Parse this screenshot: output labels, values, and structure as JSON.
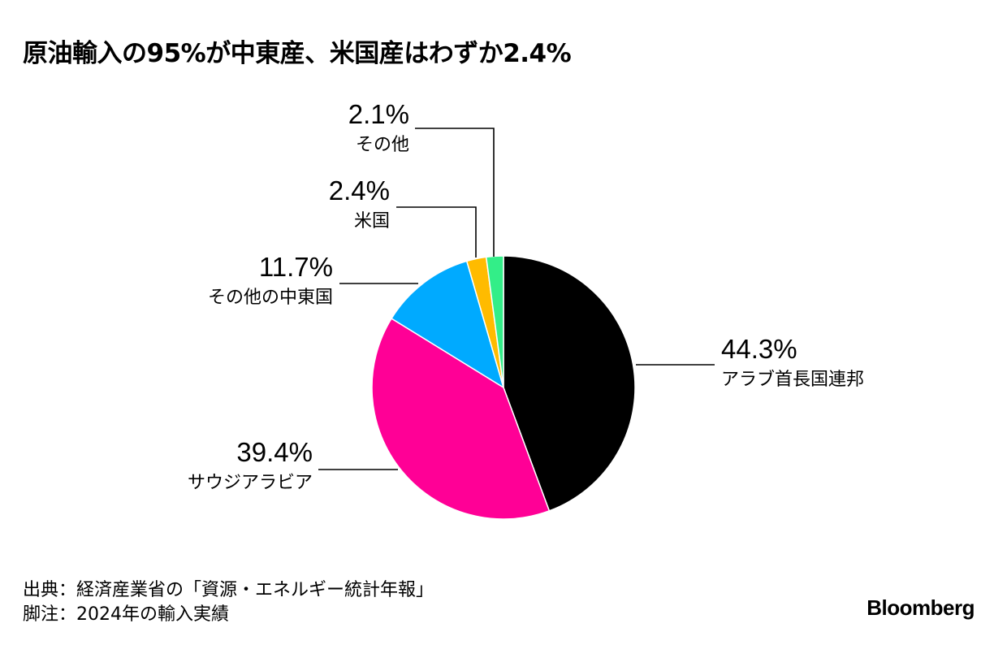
{
  "title": "原油輸入の95%が中東産、米国産はわずか2.4%",
  "chart_data": {
    "type": "pie",
    "start_angle_deg": 0,
    "direction": "clockwise",
    "slices": [
      {
        "label": "アラブ首長国連邦",
        "value": 44.3,
        "value_label": "44.3%",
        "color": "#000000"
      },
      {
        "label": "サウジアラビア",
        "value": 39.4,
        "value_label": "39.4%",
        "color": "#ff0096"
      },
      {
        "label": "その他の中東国",
        "value": 11.7,
        "value_label": "11.7%",
        "color": "#00aaff"
      },
      {
        "label": "米国",
        "value": 2.4,
        "value_label": "2.4%",
        "color": "#ffbb00"
      },
      {
        "label": "その他",
        "value": 2.1,
        "value_label": "2.1%",
        "color": "#33ee88"
      }
    ]
  },
  "footer": {
    "source": "出典：経済産業省の「資源・エネルギー統計年報」",
    "note": "脚注：2024年の輸入実績"
  },
  "brand": "Bloomberg"
}
